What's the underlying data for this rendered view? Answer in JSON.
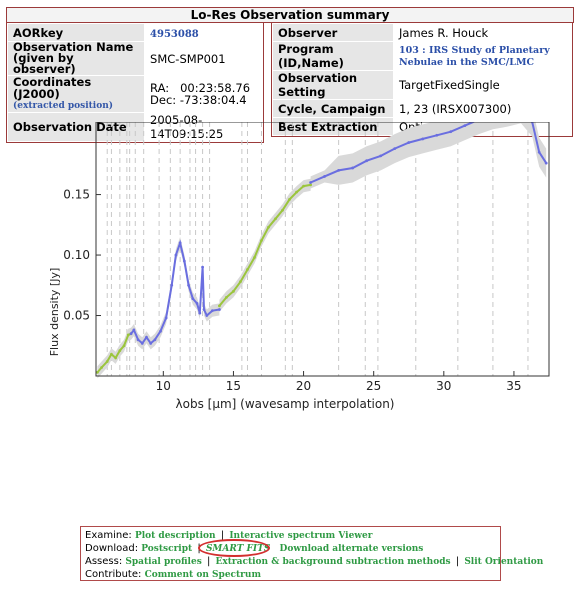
{
  "header": {
    "title": "Lo-Res Observation summary"
  },
  "left_table": {
    "aorkey_label": "AORkey",
    "aorkey_value": "4953088",
    "obsname_label": "Observation Name (given by observer)",
    "obsname_value": "SMC-SMP001",
    "coord_label": "Coordinates (J2000)",
    "coord_sub": "(extracted position)",
    "ra_label": "RA:",
    "ra_value": "00:23:58.76",
    "dec_label": "Dec:",
    "dec_value": "-73:38:04.4",
    "date_label": "Observation Date",
    "date_value": "2005-08-14T09:15:25"
  },
  "right_table": {
    "observer_label": "Observer",
    "observer_value": "James R. Houck",
    "program_label": "Program (ID,Name)",
    "program_value": "103 : IRS Study of Planetary Nebulae in the SMC/LMC",
    "setting_label": "Observation Setting",
    "setting_value": "TargetFixedSingle",
    "cycle_label": "Cycle, Campaign",
    "cycle_value": "1, 23 (IRSX007300)",
    "best_label": "Best Extraction",
    "best_value": "Optimal"
  },
  "chart_data": {
    "type": "line",
    "title": "",
    "xlabel": "λobs [μm] (wavesamp interpolation)",
    "ylabel": "Flux density [Jy]",
    "xlim": [
      5.2,
      37.5
    ],
    "ylim": [
      0.0,
      0.21
    ],
    "xticks": [
      10,
      15,
      20,
      25,
      30,
      35
    ],
    "yticks": [
      0.05,
      0.1,
      0.15
    ],
    "ytick_labels": [
      "0.05",
      "0.10",
      "0.15"
    ],
    "series": [
      {
        "color": "#9bc53d",
        "x": [
          5.3,
          5.6,
          6.0,
          6.3,
          6.6,
          6.9,
          7.2,
          7.5,
          7.7
        ],
        "y": [
          0.003,
          0.007,
          0.012,
          0.018,
          0.015,
          0.021,
          0.025,
          0.034,
          0.035
        ]
      },
      {
        "color": "#6a6ee0",
        "x": [
          7.7,
          7.9,
          8.2,
          8.5,
          8.8,
          9.1,
          9.4,
          9.8,
          10.2,
          10.6,
          10.9,
          11.2,
          11.5,
          11.8,
          12.1,
          12.4,
          12.6,
          12.8,
          12.9,
          13.1,
          13.5,
          14.0
        ],
        "y": [
          0.035,
          0.038,
          0.03,
          0.027,
          0.032,
          0.027,
          0.03,
          0.037,
          0.048,
          0.075,
          0.1,
          0.11,
          0.095,
          0.075,
          0.064,
          0.06,
          0.052,
          0.09,
          0.055,
          0.05,
          0.054,
          0.055
        ]
      },
      {
        "color": "#9bc53d",
        "x": [
          14.0,
          14.5,
          15.0,
          15.5,
          16.0,
          16.5,
          17.0,
          17.5,
          18.0,
          18.5,
          19.0,
          19.5,
          20.0,
          20.5
        ],
        "y": [
          0.058,
          0.065,
          0.07,
          0.078,
          0.088,
          0.098,
          0.112,
          0.123,
          0.13,
          0.137,
          0.146,
          0.152,
          0.157,
          0.158
        ]
      },
      {
        "color": "#6a6ee0",
        "x": [
          20.5,
          21.5,
          22.5,
          23.5,
          24.5,
          25.5,
          26.5,
          27.5,
          28.5,
          29.5,
          30.5,
          31.5,
          32.5,
          33.5,
          34.5,
          35.5,
          36.3,
          36.8,
          37.3
        ],
        "y": [
          0.16,
          0.165,
          0.17,
          0.172,
          0.178,
          0.182,
          0.188,
          0.193,
          0.196,
          0.199,
          0.202,
          0.207,
          0.212,
          0.216,
          0.218,
          0.221,
          0.21,
          0.185,
          0.176
        ]
      }
    ],
    "vlines": [
      6.0,
      6.3,
      6.9,
      7.4,
      7.6,
      8.0,
      8.6,
      9.7,
      10.5,
      11.2,
      11.9,
      12.3,
      12.8,
      13.3,
      15.6,
      16.0,
      17.0,
      18.7,
      19.2,
      22.5,
      24.4,
      25.3,
      28.0,
      31.0,
      33.5,
      36.0
    ]
  },
  "links_box": {
    "examine_label": "Examine:",
    "plot_description": "Plot description",
    "interactive_viewer": "Interactive spectrum Viewer",
    "download_label": "Download:",
    "postscript": "Postscript",
    "smart_fits": "SMART FITS",
    "download_alternate": "Download alternate versions",
    "assess_label": "Assess:",
    "spatial_profiles": "Spatial profiles",
    "extraction_methods": "Extraction & background subtraction methods",
    "slit_orientation": "Slit Orientation",
    "contribute_label": "Contribute:",
    "comment": "Comment on Spectrum",
    "sep": "|"
  }
}
